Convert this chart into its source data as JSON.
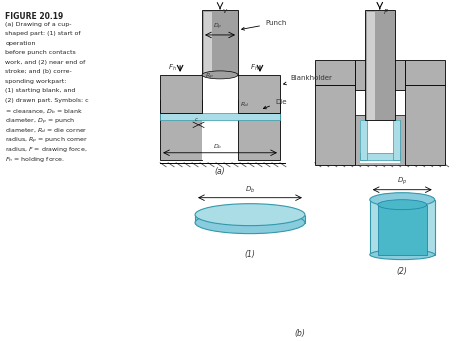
{
  "title": "FIGURE 20.19",
  "caption_lines": [
    "(a) Drawing of a cup-",
    "shaped part: (1) start of",
    "operation",
    "before punch contacts",
    "work, and (2) near end of",
    "stroke; and (b) corre-",
    "sponding workpart:",
    "(1) starting blank, and",
    "(2) drawn part. Symbols: c",
    "= clearance, Dᵇ = blank",
    "diameter, Dₚ = punch",
    "diameter, R₉ = die corner",
    "radius, Rₚ = punch corner",
    "radius, F = drawing force,",
    "Fₕ = holding force."
  ],
  "bg_color": "#ffffff",
  "gray_light": "#b0b0b0",
  "gray_dark": "#808080",
  "gray_mid": "#a0a0a0",
  "cyan_light": "#aadde6",
  "cyan_dark": "#4ab8c8",
  "hatch_color": "#888888",
  "text_color": "#222222",
  "label_color": "#333333"
}
